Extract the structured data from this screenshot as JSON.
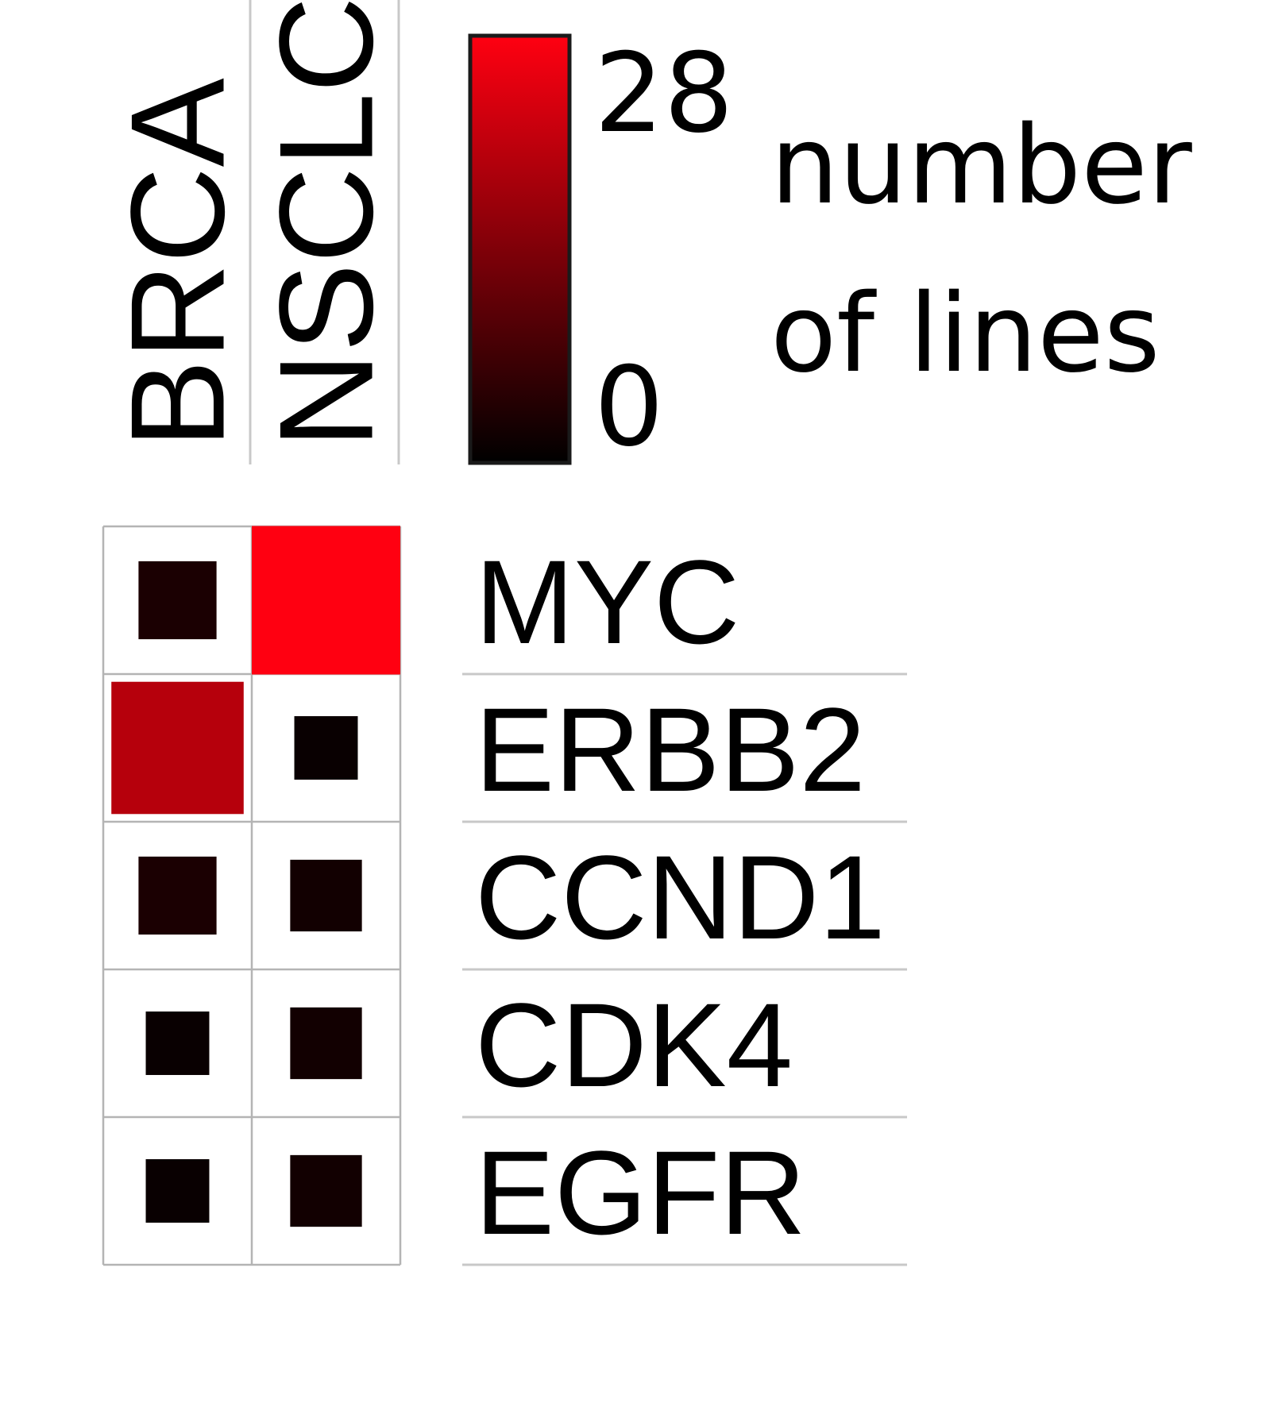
{
  "chart_data": {
    "type": "heatmap",
    "columns": [
      "BRCA",
      "NSCLC"
    ],
    "rows": [
      "MYC",
      "ERBB2",
      "CCND1",
      "CDK4",
      "EGFR"
    ],
    "values": [
      [
        3,
        28
      ],
      [
        20,
        1
      ],
      [
        3,
        2
      ],
      [
        1,
        2
      ],
      [
        1,
        2
      ]
    ],
    "color_scale": {
      "min": 0,
      "max": 28,
      "min_label": "0",
      "max_label": "28",
      "min_color": "#000000",
      "max_color": "#ff0011",
      "title_lines": [
        "number",
        "of lines"
      ]
    },
    "encoding": "square size and color both scale with value"
  }
}
